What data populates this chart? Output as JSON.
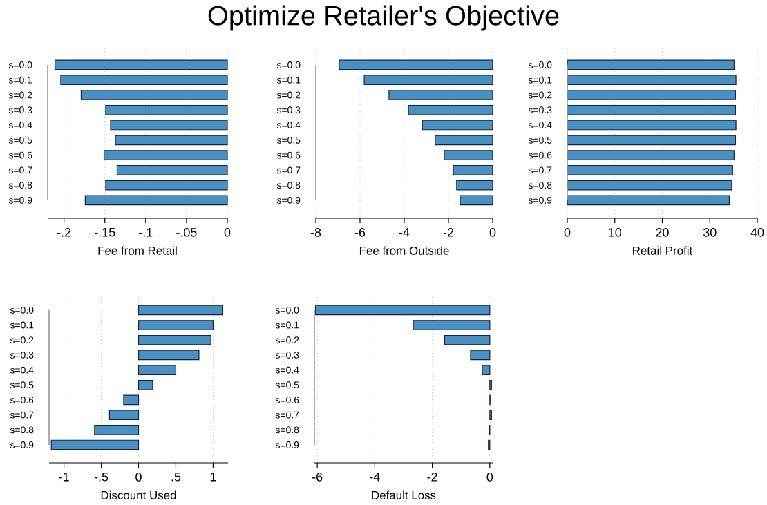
{
  "chart_data": [
    {
      "type": "bar",
      "orientation": "horizontal",
      "xlabel": "Fee from Retail",
      "grid": "x",
      "color": "#4a90c2",
      "categories": [
        "s=0.0",
        "s=0.1",
        "s=0.2",
        "s=0.3",
        "s=0.4",
        "s=0.5",
        "s=0.6",
        "s=0.7",
        "s=0.8",
        "s=0.9"
      ],
      "values": [
        -0.211,
        -0.204,
        -0.179,
        -0.149,
        -0.143,
        -0.137,
        -0.151,
        -0.135,
        -0.149,
        -0.174
      ],
      "xlim": [
        -0.22,
        0
      ],
      "xticks": [
        {
          "value": -0.2,
          "label": "-.2"
        },
        {
          "value": -0.15,
          "label": "-.15"
        },
        {
          "value": -0.1,
          "label": "-.1"
        },
        {
          "value": -0.05,
          "label": "-.05"
        },
        0
      ]
    },
    {
      "type": "bar",
      "orientation": "horizontal",
      "title": "Optimize Retailer's Objective",
      "xlabel": "Fee from Outside",
      "grid": "x",
      "color": "#4a90c2",
      "categories": [
        "s=0.0",
        "s=0.1",
        "s=0.2",
        "s=0.3",
        "s=0.4",
        "s=0.5",
        "s=0.6",
        "s=0.7",
        "s=0.8",
        "s=0.9"
      ],
      "values": [
        -6.94,
        -5.81,
        -4.69,
        -3.81,
        -3.18,
        -2.6,
        -2.19,
        -1.78,
        -1.63,
        -1.47
      ],
      "xlim": [
        -8,
        0
      ],
      "xticks": [
        -8,
        -6,
        -4,
        -2,
        0
      ]
    },
    {
      "type": "bar",
      "orientation": "horizontal",
      "xlabel": "Retail Profit",
      "grid": "x",
      "color": "#4a90c2",
      "categories": [
        "s=0.0",
        "s=0.1",
        "s=0.2",
        "s=0.3",
        "s=0.4",
        "s=0.5",
        "s=0.6",
        "s=0.7",
        "s=0.8",
        "s=0.9"
      ],
      "values": [
        35.1,
        35.5,
        35.4,
        35.4,
        35.5,
        35.4,
        35.1,
        34.8,
        34.6,
        34.1
      ],
      "xlim": [
        0,
        40
      ],
      "xticks": [
        0,
        10,
        20,
        30,
        40
      ]
    },
    {
      "type": "bar",
      "orientation": "horizontal",
      "xlabel": "Discount Used",
      "grid": "x",
      "color": "#4a90c2",
      "categories": [
        "s=0.0",
        "s=0.1",
        "s=0.2",
        "s=0.3",
        "s=0.4",
        "s=0.5",
        "s=0.6",
        "s=0.7",
        "s=0.8",
        "s=0.9"
      ],
      "values": [
        1.13,
        1.0,
        0.97,
        0.81,
        0.5,
        0.19,
        -0.2,
        -0.39,
        -0.59,
        -1.17
      ],
      "xlim": [
        -1.2,
        1.2
      ],
      "xticks": [
        -1,
        {
          "value": -0.5,
          "label": "-.5"
        },
        0,
        {
          "value": 0.5,
          "label": ".5"
        },
        1
      ]
    },
    {
      "type": "bar",
      "orientation": "horizontal",
      "xlabel": "Default Loss",
      "grid": "x",
      "color": "#4a90c2",
      "categories": [
        "s=0.0",
        "s=0.1",
        "s=0.2",
        "s=0.3",
        "s=0.4",
        "s=0.5",
        "s=0.6",
        "s=0.7",
        "s=0.8",
        "s=0.9"
      ],
      "values": [
        -6.06,
        -2.66,
        -1.57,
        -0.67,
        -0.26,
        0.06,
        0.01,
        0.06,
        -0.01,
        -0.05
      ],
      "xlim": [
        -6.1,
        0.1
      ],
      "xticks": [
        -6,
        -4,
        -2,
        0
      ]
    }
  ]
}
